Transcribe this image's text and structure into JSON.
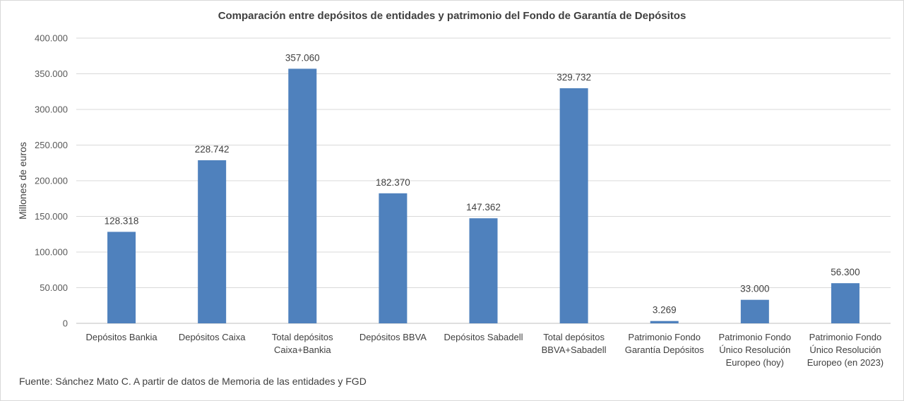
{
  "chart_data": {
    "type": "bar",
    "title": "Comparación entre depósitos de entidades y patrimonio del Fondo de Garantía de Depósitos",
    "ylabel": "Millones de euros",
    "xlabel": "",
    "ylim": [
      0,
      400000
    ],
    "yticks": [
      0,
      50000,
      100000,
      150000,
      200000,
      250000,
      300000,
      350000,
      400000
    ],
    "ytick_labels": [
      "0",
      "50.000",
      "100.000",
      "150.000",
      "200.000",
      "250.000",
      "300.000",
      "350.000",
      "400.000"
    ],
    "grid": true,
    "bar_color": "#4f81bd",
    "categories": [
      [
        "Depósitos Bankia"
      ],
      [
        "Depósitos Caixa"
      ],
      [
        "Total depósitos",
        "Caixa+Bankia"
      ],
      [
        "Depósitos BBVA"
      ],
      [
        "Depósitos Sabadell"
      ],
      [
        "Total depósitos",
        "BBVA+Sabadell"
      ],
      [
        "Patrimonio Fondo",
        "Garantía Depósitos"
      ],
      [
        "Patrimonio Fondo",
        "Único Resolución",
        "Europeo (hoy)"
      ],
      [
        "Patrimonio Fondo",
        "Único Resolución",
        "Europeo (en 2023)"
      ]
    ],
    "values": [
      128318,
      228742,
      357060,
      182370,
      147362,
      329732,
      3269,
      33000,
      56300
    ],
    "data_labels": [
      "128.318",
      "228.742",
      "357.060",
      "182.370",
      "147.362",
      "329.732",
      "3.269",
      "33.000",
      "56.300"
    ]
  },
  "source": "Fuente: Sánchez Mato C. A partir de datos de Memoria de las entidades y FGD"
}
